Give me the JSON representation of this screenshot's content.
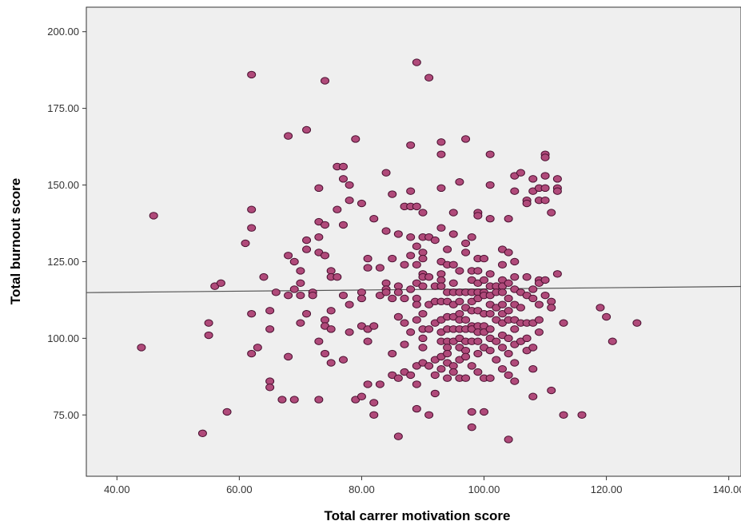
{
  "chart_data": {
    "type": "scatter",
    "title": "",
    "xlabel": "Total carrer motivation score",
    "ylabel": "Total burnout score",
    "xlim": [
      35,
      142
    ],
    "ylim": [
      55,
      208
    ],
    "xticks": [
      40,
      60,
      80,
      100,
      120,
      140
    ],
    "yticks": [
      75,
      100,
      125,
      150,
      175,
      200
    ],
    "xtick_labels": [
      "40.00",
      "60.00",
      "80.00",
      "100.00",
      "120.00",
      "140.00"
    ],
    "ytick_labels": [
      "75.00",
      "100.00",
      "125.00",
      "150.00",
      "175.00",
      "200.00"
    ],
    "grid": false,
    "legend": "none",
    "fit_line": {
      "x": [
        35,
        142
      ],
      "y": [
        114.9,
        116.9
      ]
    },
    "colors": {
      "plot_background": "#efefef",
      "marker_fill": "#b04a7a",
      "marker_edge": "#4a1030",
      "fit_line": "#555555"
    },
    "points": [
      [
        44,
        97
      ],
      [
        46,
        140
      ],
      [
        54,
        69
      ],
      [
        55,
        105
      ],
      [
        55,
        101
      ],
      [
        56,
        117
      ],
      [
        57,
        118
      ],
      [
        58,
        76
      ],
      [
        61,
        131
      ],
      [
        62,
        186
      ],
      [
        62,
        142
      ],
      [
        62,
        136
      ],
      [
        62,
        108
      ],
      [
        62,
        95
      ],
      [
        63,
        97
      ],
      [
        64,
        120
      ],
      [
        65,
        109
      ],
      [
        65,
        103
      ],
      [
        65,
        86
      ],
      [
        65,
        84
      ],
      [
        66,
        115
      ],
      [
        67,
        80
      ],
      [
        68,
        166
      ],
      [
        68,
        127
      ],
      [
        68,
        114
      ],
      [
        68,
        94
      ],
      [
        69,
        125
      ],
      [
        69,
        116
      ],
      [
        69,
        80
      ],
      [
        70,
        122
      ],
      [
        70,
        114
      ],
      [
        70,
        118
      ],
      [
        70,
        105
      ],
      [
        71,
        168
      ],
      [
        71,
        132
      ],
      [
        71,
        129
      ],
      [
        71,
        108
      ],
      [
        72,
        115
      ],
      [
        72,
        114
      ],
      [
        73,
        149
      ],
      [
        73,
        138
      ],
      [
        73,
        133
      ],
      [
        73,
        128
      ],
      [
        73,
        99
      ],
      [
        73,
        80
      ],
      [
        74,
        184
      ],
      [
        74,
        137
      ],
      [
        74,
        127
      ],
      [
        74,
        106
      ],
      [
        74,
        104
      ],
      [
        74,
        95
      ],
      [
        75,
        122
      ],
      [
        75,
        120
      ],
      [
        75,
        109
      ],
      [
        75,
        103
      ],
      [
        75,
        92
      ],
      [
        76,
        142
      ],
      [
        76,
        120
      ],
      [
        76,
        156
      ],
      [
        77,
        156
      ],
      [
        77,
        152
      ],
      [
        77,
        137
      ],
      [
        77,
        114
      ],
      [
        77,
        93
      ],
      [
        78,
        150
      ],
      [
        78,
        145
      ],
      [
        78,
        111
      ],
      [
        78,
        102
      ],
      [
        79,
        165
      ],
      [
        79,
        80
      ],
      [
        80,
        144
      ],
      [
        80,
        115
      ],
      [
        80,
        113
      ],
      [
        80,
        104
      ],
      [
        80,
        81
      ],
      [
        81,
        126
      ],
      [
        81,
        123
      ],
      [
        81,
        103
      ],
      [
        81,
        99
      ],
      [
        81,
        85
      ],
      [
        82,
        139
      ],
      [
        82,
        104
      ],
      [
        82,
        79
      ],
      [
        82,
        75
      ],
      [
        83,
        123
      ],
      [
        83,
        114
      ],
      [
        83,
        85
      ],
      [
        84,
        154
      ],
      [
        84,
        135
      ],
      [
        84,
        118
      ],
      [
        84,
        116
      ],
      [
        84,
        115
      ],
      [
        85,
        147
      ],
      [
        85,
        126
      ],
      [
        85,
        113
      ],
      [
        85,
        95
      ],
      [
        85,
        88
      ],
      [
        86,
        134
      ],
      [
        86,
        117
      ],
      [
        86,
        115
      ],
      [
        86,
        107
      ],
      [
        86,
        87
      ],
      [
        86,
        68
      ],
      [
        87,
        143
      ],
      [
        87,
        124
      ],
      [
        87,
        113
      ],
      [
        87,
        105
      ],
      [
        87,
        98
      ],
      [
        87,
        89
      ],
      [
        88,
        163
      ],
      [
        88,
        148
      ],
      [
        88,
        143
      ],
      [
        88,
        133
      ],
      [
        88,
        127
      ],
      [
        88,
        116
      ],
      [
        88,
        102
      ],
      [
        88,
        88
      ],
      [
        89,
        190
      ],
      [
        89,
        143
      ],
      [
        89,
        130
      ],
      [
        89,
        124
      ],
      [
        89,
        118
      ],
      [
        89,
        113
      ],
      [
        89,
        111
      ],
      [
        89,
        106
      ],
      [
        89,
        91
      ],
      [
        89,
        85
      ],
      [
        89,
        77
      ],
      [
        90,
        141
      ],
      [
        90,
        133
      ],
      [
        90,
        128
      ],
      [
        90,
        126
      ],
      [
        90,
        121
      ],
      [
        90,
        120
      ],
      [
        90,
        117
      ],
      [
        90,
        108
      ],
      [
        90,
        103
      ],
      [
        90,
        100
      ],
      [
        90,
        97
      ],
      [
        90,
        92
      ],
      [
        91,
        185
      ],
      [
        91,
        133
      ],
      [
        91,
        120
      ],
      [
        91,
        111
      ],
      [
        91,
        103
      ],
      [
        91,
        91
      ],
      [
        91,
        75
      ],
      [
        92,
        132
      ],
      [
        92,
        117
      ],
      [
        92,
        112
      ],
      [
        92,
        105
      ],
      [
        92,
        93
      ],
      [
        92,
        88
      ],
      [
        92,
        82
      ],
      [
        93,
        164
      ],
      [
        93,
        160
      ],
      [
        93,
        149
      ],
      [
        93,
        136
      ],
      [
        93,
        125
      ],
      [
        93,
        121
      ],
      [
        93,
        119
      ],
      [
        93,
        117
      ],
      [
        93,
        112
      ],
      [
        93,
        106
      ],
      [
        93,
        102
      ],
      [
        93,
        99
      ],
      [
        93,
        94
      ],
      [
        93,
        90
      ],
      [
        94,
        129
      ],
      [
        94,
        124
      ],
      [
        94,
        115
      ],
      [
        94,
        112
      ],
      [
        94,
        107
      ],
      [
        94,
        103
      ],
      [
        94,
        99
      ],
      [
        94,
        97
      ],
      [
        94,
        95
      ],
      [
        94,
        92
      ],
      [
        94,
        87
      ],
      [
        95,
        141
      ],
      [
        95,
        134
      ],
      [
        95,
        124
      ],
      [
        95,
        118
      ],
      [
        95,
        115
      ],
      [
        95,
        111
      ],
      [
        95,
        107
      ],
      [
        95,
        103
      ],
      [
        95,
        99
      ],
      [
        95,
        91
      ],
      [
        95,
        89
      ],
      [
        96,
        151
      ],
      [
        96,
        122
      ],
      [
        96,
        115
      ],
      [
        96,
        112
      ],
      [
        96,
        108
      ],
      [
        96,
        106
      ],
      [
        96,
        103
      ],
      [
        96,
        100
      ],
      [
        96,
        97
      ],
      [
        96,
        93
      ],
      [
        96,
        87
      ],
      [
        97,
        165
      ],
      [
        97,
        131
      ],
      [
        97,
        128
      ],
      [
        97,
        115
      ],
      [
        97,
        110
      ],
      [
        97,
        106
      ],
      [
        97,
        103
      ],
      [
        97,
        99
      ],
      [
        97,
        96
      ],
      [
        97,
        94
      ],
      [
        97,
        87
      ],
      [
        98,
        133
      ],
      [
        98,
        122
      ],
      [
        98,
        119
      ],
      [
        98,
        115
      ],
      [
        98,
        112
      ],
      [
        98,
        109
      ],
      [
        98,
        104
      ],
      [
        98,
        103
      ],
      [
        98,
        99
      ],
      [
        98,
        91
      ],
      [
        98,
        76
      ],
      [
        98,
        71
      ],
      [
        99,
        141
      ],
      [
        99,
        140
      ],
      [
        99,
        126
      ],
      [
        99,
        122
      ],
      [
        99,
        118
      ],
      [
        99,
        115
      ],
      [
        99,
        113
      ],
      [
        99,
        109
      ],
      [
        99,
        104
      ],
      [
        99,
        102
      ],
      [
        99,
        99
      ],
      [
        99,
        95
      ],
      [
        99,
        89
      ],
      [
        100,
        126
      ],
      [
        100,
        119
      ],
      [
        100,
        115
      ],
      [
        100,
        114
      ],
      [
        100,
        108
      ],
      [
        100,
        104
      ],
      [
        100,
        102
      ],
      [
        100,
        97
      ],
      [
        100,
        87
      ],
      [
        100,
        76
      ],
      [
        101,
        160
      ],
      [
        101,
        150
      ],
      [
        101,
        139
      ],
      [
        101,
        121
      ],
      [
        101,
        117
      ],
      [
        101,
        114
      ],
      [
        101,
        111
      ],
      [
        101,
        108
      ],
      [
        101,
        103
      ],
      [
        101,
        100
      ],
      [
        101,
        96
      ],
      [
        101,
        87
      ],
      [
        102,
        117
      ],
      [
        102,
        115
      ],
      [
        102,
        110
      ],
      [
        102,
        106
      ],
      [
        102,
        99
      ],
      [
        102,
        93
      ],
      [
        103,
        129
      ],
      [
        103,
        124
      ],
      [
        103,
        119
      ],
      [
        103,
        117
      ],
      [
        103,
        115
      ],
      [
        103,
        111
      ],
      [
        103,
        108
      ],
      [
        103,
        105
      ],
      [
        103,
        101
      ],
      [
        103,
        97
      ],
      [
        103,
        90
      ],
      [
        104,
        139
      ],
      [
        104,
        128
      ],
      [
        104,
        118
      ],
      [
        104,
        113
      ],
      [
        104,
        109
      ],
      [
        104,
        106
      ],
      [
        104,
        100
      ],
      [
        104,
        95
      ],
      [
        104,
        88
      ],
      [
        104,
        67
      ],
      [
        105,
        153
      ],
      [
        105,
        148
      ],
      [
        105,
        125
      ],
      [
        105,
        120
      ],
      [
        105,
        116
      ],
      [
        105,
        111
      ],
      [
        105,
        106
      ],
      [
        105,
        103
      ],
      [
        105,
        98
      ],
      [
        105,
        92
      ],
      [
        105,
        86
      ],
      [
        106,
        154
      ],
      [
        106,
        115
      ],
      [
        106,
        110
      ],
      [
        106,
        105
      ],
      [
        106,
        99
      ],
      [
        107,
        145
      ],
      [
        107,
        144
      ],
      [
        107,
        120
      ],
      [
        107,
        114
      ],
      [
        107,
        105
      ],
      [
        107,
        100
      ],
      [
        107,
        96
      ],
      [
        108,
        152
      ],
      [
        108,
        148
      ],
      [
        108,
        116
      ],
      [
        108,
        113
      ],
      [
        108,
        105
      ],
      [
        108,
        97
      ],
      [
        108,
        90
      ],
      [
        108,
        81
      ],
      [
        109,
        149
      ],
      [
        109,
        145
      ],
      [
        109,
        119
      ],
      [
        109,
        118
      ],
      [
        109,
        111
      ],
      [
        109,
        106
      ],
      [
        109,
        102
      ],
      [
        110,
        160
      ],
      [
        110,
        159
      ],
      [
        110,
        153
      ],
      [
        110,
        149
      ],
      [
        110,
        145
      ],
      [
        110,
        119
      ],
      [
        110,
        114
      ],
      [
        111,
        141
      ],
      [
        111,
        112
      ],
      [
        111,
        110
      ],
      [
        111,
        83
      ],
      [
        112,
        152
      ],
      [
        112,
        149
      ],
      [
        112,
        148
      ],
      [
        112,
        121
      ],
      [
        113,
        105
      ],
      [
        113,
        75
      ],
      [
        116,
        75
      ],
      [
        119,
        110
      ],
      [
        120,
        107
      ],
      [
        121,
        99
      ],
      [
        125,
        105
      ]
    ]
  }
}
